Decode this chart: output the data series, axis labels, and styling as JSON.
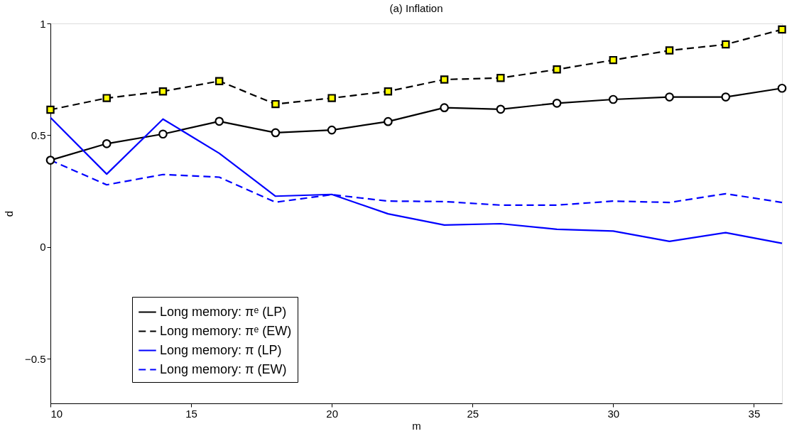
{
  "chart_data": {
    "type": "line",
    "title": "(a) Inflation",
    "xlabel": "m",
    "ylabel": "d",
    "x": [
      10,
      12,
      14,
      16,
      18,
      20,
      22,
      24,
      26,
      28,
      30,
      32,
      34,
      36
    ],
    "xlim": [
      10,
      36
    ],
    "xticks": [
      10,
      15,
      20,
      25,
      30,
      35
    ],
    "ylim": [
      -0.7,
      1
    ],
    "yticks": [
      {
        "value": -0.5,
        "label": "−0.5"
      },
      0,
      0.5,
      1
    ],
    "grid": false,
    "legend": "bottom left",
    "series": [
      {
        "name": "Long memory: πᵉ (LP)",
        "color": "#000000",
        "marker": "circle",
        "line_style": "solid",
        "values": [
          0.388,
          0.462,
          0.505,
          0.562,
          0.511,
          0.523,
          0.561,
          0.623,
          0.616,
          0.643,
          0.66,
          0.671,
          0.671,
          0.71
        ]
      },
      {
        "name": "Long memory: πᵉ (EW)",
        "color": "#000000",
        "marker": "square",
        "line_style": "dashed",
        "values": [
          0.614,
          0.666,
          0.696,
          0.742,
          0.639,
          0.666,
          0.696,
          0.749,
          0.756,
          0.794,
          0.836,
          0.879,
          0.906,
          0.973
        ]
      },
      {
        "name": "Long memory: π (LP)",
        "color": "#0000ff",
        "marker": "none",
        "line_style": "solid",
        "values": [
          0.579,
          0.326,
          0.572,
          0.419,
          0.227,
          0.235,
          0.148,
          0.098,
          0.104,
          0.079,
          0.071,
          0.025,
          0.064,
          0.016
        ]
      },
      {
        "name": "Long memory: π (EW)",
        "color": "#0000ff",
        "marker": "none",
        "line_style": "dashed",
        "values": [
          0.388,
          0.278,
          0.324,
          0.312,
          0.2,
          0.234,
          0.205,
          0.203,
          0.187,
          0.187,
          0.205,
          0.199,
          0.238,
          0.199
        ]
      }
    ]
  }
}
